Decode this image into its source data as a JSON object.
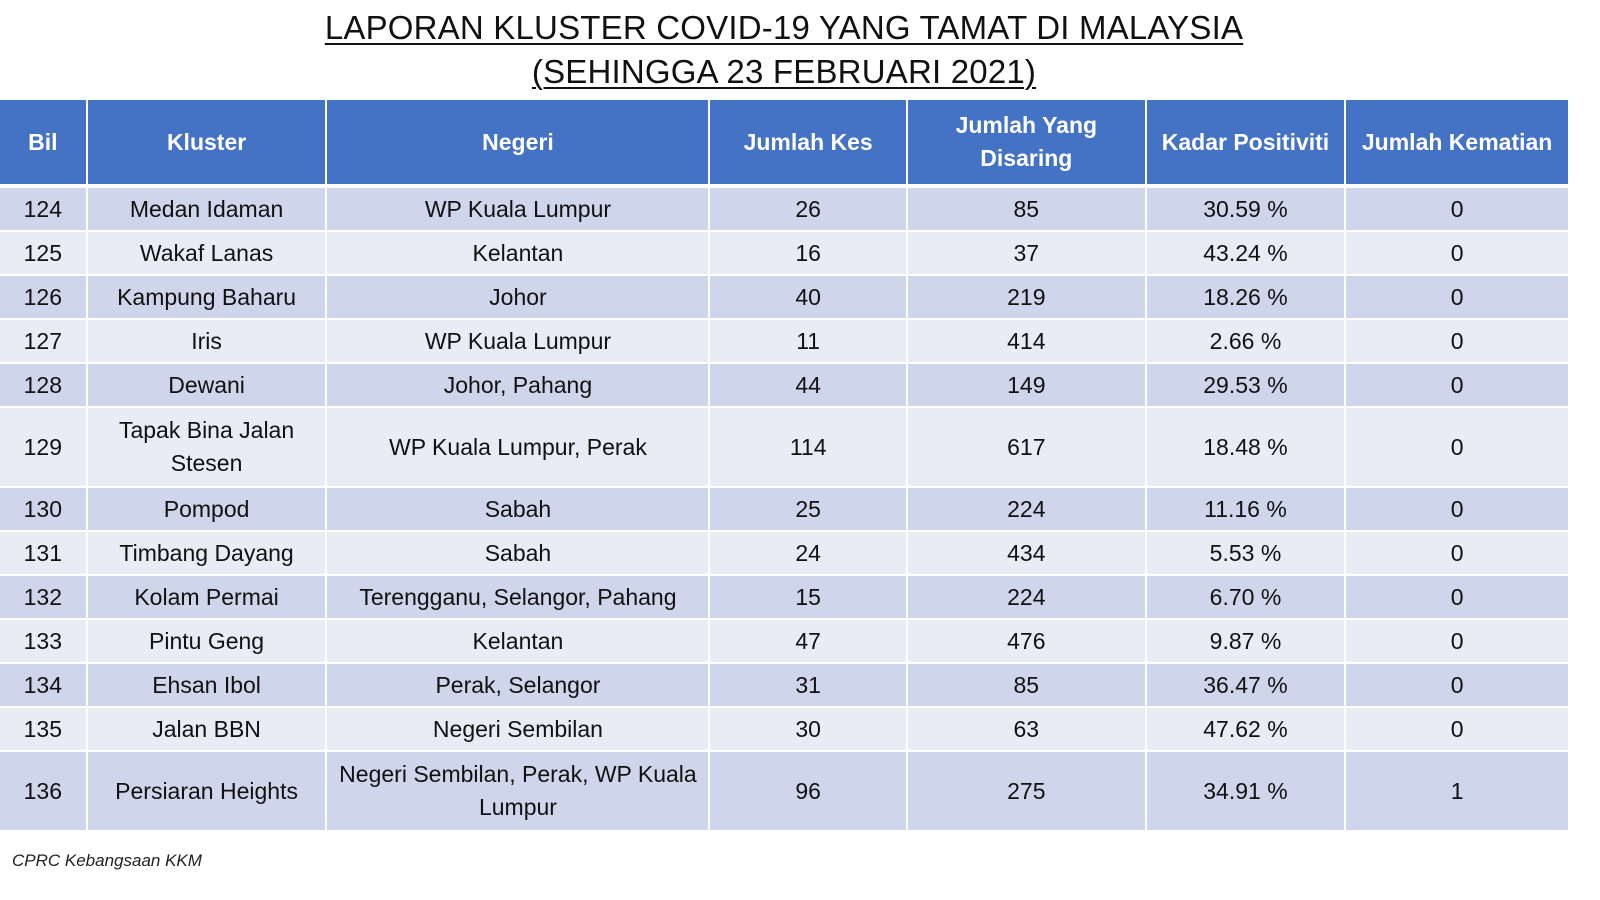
{
  "title": {
    "line1": "LAPORAN KLUSTER COVID-19 YANG TAMAT DI MALAYSIA",
    "line2": "(SEHINGGA  23 FEBRUARI 2021)"
  },
  "table": {
    "headers": {
      "bil": "Bil",
      "kluster": "Kluster",
      "negeri": "Negeri",
      "jumlah_kes": "Jumlah Kes",
      "jumlah_disaring": "Jumlah Yang Disaring",
      "kadar_positiviti": "Kadar Positiviti",
      "jumlah_kematian": "Jumlah Kematian"
    },
    "rows": [
      {
        "bil": "124",
        "kluster": "Medan Idaman",
        "negeri": "WP Kuala Lumpur",
        "kes": "26",
        "disaring": "85",
        "kadar": "30.59 %",
        "kematian": "0"
      },
      {
        "bil": "125",
        "kluster": "Wakaf Lanas",
        "negeri": "Kelantan",
        "kes": "16",
        "disaring": "37",
        "kadar": "43.24 %",
        "kematian": "0"
      },
      {
        "bil": "126",
        "kluster": "Kampung Baharu",
        "negeri": "Johor",
        "kes": "40",
        "disaring": "219",
        "kadar": "18.26 %",
        "kematian": "0"
      },
      {
        "bil": "127",
        "kluster": "Iris",
        "negeri": "WP Kuala Lumpur",
        "kes": "11",
        "disaring": "414",
        "kadar": "2.66 %",
        "kematian": "0"
      },
      {
        "bil": "128",
        "kluster": "Dewani",
        "negeri": "Johor, Pahang",
        "kes": "44",
        "disaring": "149",
        "kadar": "29.53 %",
        "kematian": "0"
      },
      {
        "bil": "129",
        "kluster": "Tapak Bina Jalan Stesen",
        "negeri": "WP Kuala Lumpur, Perak",
        "kes": "114",
        "disaring": "617",
        "kadar": "18.48 %",
        "kematian": "0"
      },
      {
        "bil": "130",
        "kluster": "Pompod",
        "negeri": "Sabah",
        "kes": "25",
        "disaring": "224",
        "kadar": "11.16 %",
        "kematian": "0"
      },
      {
        "bil": "131",
        "kluster": "Timbang Dayang",
        "negeri": "Sabah",
        "kes": "24",
        "disaring": "434",
        "kadar": "5.53 %",
        "kematian": "0"
      },
      {
        "bil": "132",
        "kluster": "Kolam Permai",
        "negeri": "Terengganu, Selangor, Pahang",
        "kes": "15",
        "disaring": "224",
        "kadar": "6.70 %",
        "kematian": "0"
      },
      {
        "bil": "133",
        "kluster": "Pintu Geng",
        "negeri": "Kelantan",
        "kes": "47",
        "disaring": "476",
        "kadar": "9.87 %",
        "kematian": "0"
      },
      {
        "bil": "134",
        "kluster": "Ehsan Ibol",
        "negeri": "Perak, Selangor",
        "kes": "31",
        "disaring": "85",
        "kadar": "36.47 %",
        "kematian": "0"
      },
      {
        "bil": "135",
        "kluster": "Jalan BBN",
        "negeri": "Negeri Sembilan",
        "kes": "30",
        "disaring": "63",
        "kadar": "47.62 %",
        "kematian": "0"
      },
      {
        "bil": "136",
        "kluster": "Persiaran Heights",
        "negeri": "Negeri Sembilan, Perak, WP Kuala Lumpur",
        "kes": "96",
        "disaring": "275",
        "kadar": "34.91 %",
        "kematian": "1"
      }
    ]
  },
  "source": "CPRC Kebangsaan KKM",
  "colors": {
    "header_bg": "#4472c4",
    "row_odd_bg": "#cfd5ea",
    "row_even_bg": "#e9ebf5"
  }
}
